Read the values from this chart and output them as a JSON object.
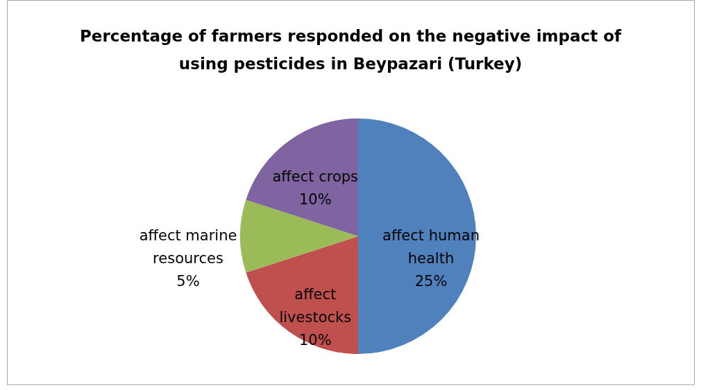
{
  "chart_data": {
    "type": "pie",
    "title": "Percentage of farmers responded on the  negative impact of using pesticides in  Beypazari  (Turkey)",
    "categories": [
      "affect human health",
      "affect livestocks",
      "affect marine resources",
      "affect crops"
    ],
    "values": [
      25,
      10,
      5,
      10
    ],
    "value_labels": [
      "25%",
      "10%",
      "5%",
      "10%"
    ],
    "colors": [
      "#4f81bd",
      "#c0504d",
      "#9bbb59",
      "#8064a2"
    ],
    "legend": false
  }
}
